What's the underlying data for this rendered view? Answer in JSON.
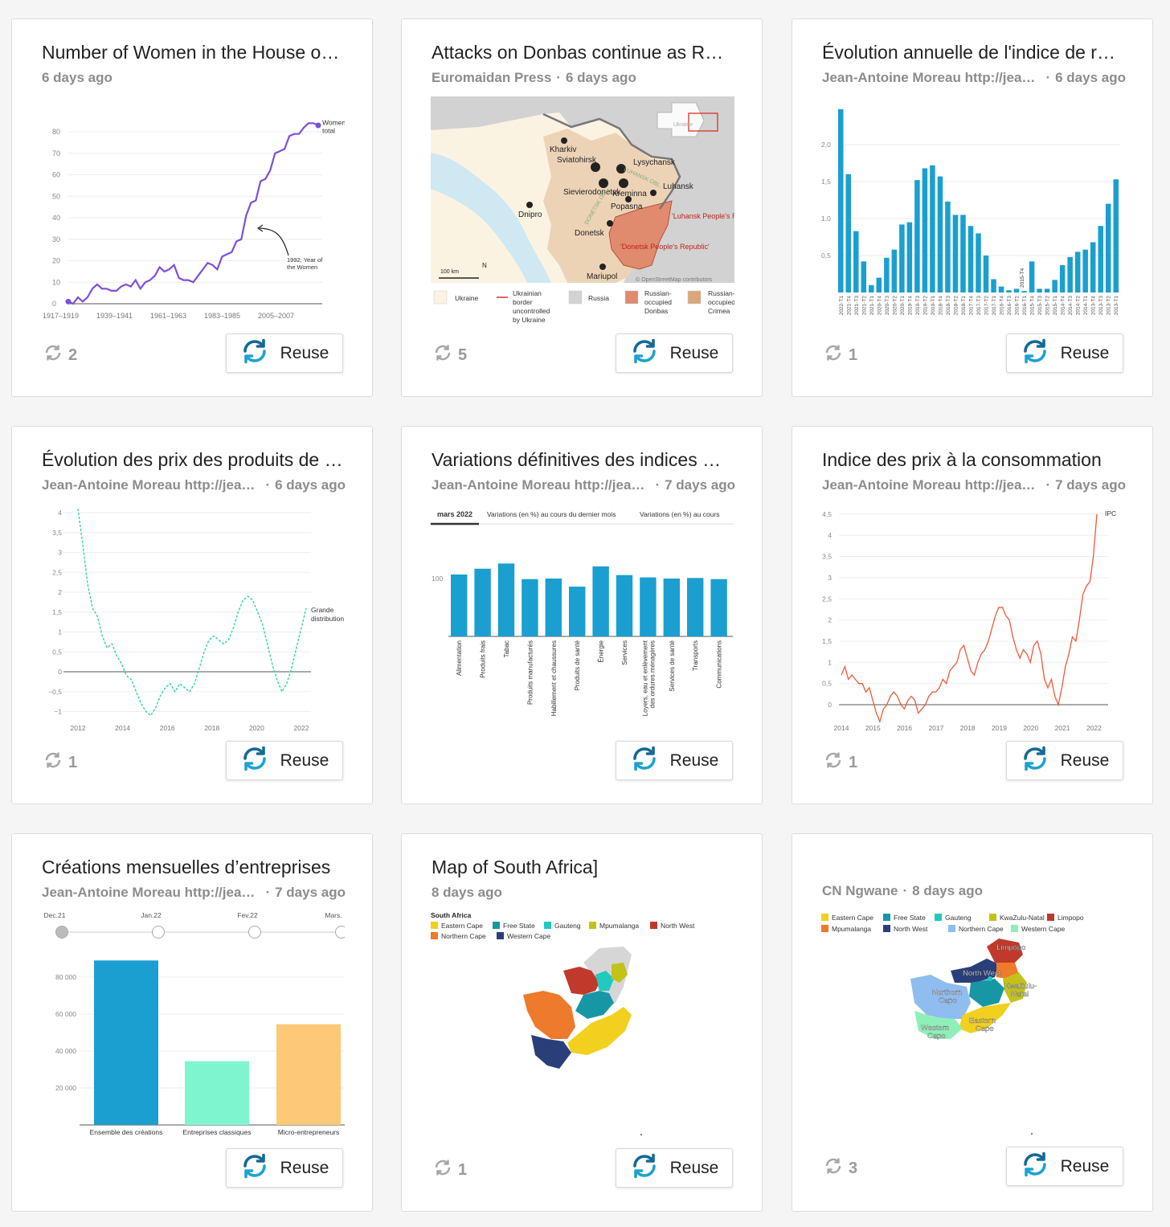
{
  "reuse_label": "Reuse",
  "cards": [
    {
      "title": "Number of Women in the House of…",
      "author": "",
      "time": "6 days ago",
      "reuses": "2",
      "chart": {
        "type": "line",
        "color": "#7b4fe0",
        "x_ticks": [
          "1917–1919",
          "1939–1941",
          "1961–1963",
          "1983–1985",
          "2005–2007"
        ],
        "y_ticks": [
          "0",
          "10",
          "20",
          "30",
          "40",
          "50",
          "60",
          "70",
          "80"
        ],
        "series_label": [
          "Women",
          "total"
        ],
        "annotation": [
          "1992: Year of",
          "the Women"
        ]
      }
    },
    {
      "title": "Attacks on Donbas continue as Ru…",
      "author": "Euromaidan Press",
      "time": "6 days ago",
      "reuses": "5",
      "map": {
        "cities": [
          "Kharkiv",
          "Sviatohirsk",
          "Lysychansk",
          "Sievierodonetsk",
          "Kreminna",
          "Luhansk",
          "Popasna",
          "Dnipro",
          "Donetsk",
          "Mariupol"
        ],
        "region_labels": [
          "LUHANSK OBL.",
          "DONETSK OBL."
        ],
        "red_labels": [
          "'Luhansk People's Republic'",
          "'Donetsk People's Republic'"
        ],
        "inset_label": "Ukraine",
        "scale": "100 km",
        "north": "N",
        "credit": "© OpenStreetMap contributors",
        "legend": [
          "Ukraine",
          "Ukrainian border uncontrolled by Ukraine",
          "Russia",
          "Russian-occupied Donbas",
          "Russian-occupied Crimea"
        ]
      }
    },
    {
      "title": "Évolution annuelle de l'indice de ré…",
      "author": "Jean-Antoine Moreau http://jeanantoinemoreau",
      "time": "6 days ago",
      "reuses": "1",
      "chart": {
        "type": "bar",
        "color": "#1a9fd0",
        "y_ticks": [
          "0,5",
          "1,0",
          "1,5",
          "2,0"
        ],
        "categories": [
          "2022-T1",
          "2021-T4",
          "2021-T3",
          "2021-T2",
          "2021-T1",
          "2020-T4",
          "2020-T3",
          "2020-T2",
          "2020-T1",
          "2019-T4",
          "2019-T3",
          "2019-T2",
          "2019-T1",
          "2018-T4",
          "2018-T3",
          "2018-T2",
          "2018-T1",
          "2017-T4",
          "2017-T3",
          "2017-T2",
          "2017-T1",
          "2016-T4",
          "2016-T3",
          "2016-T2",
          "2016-T1",
          "2015-T4",
          "2015-T3",
          "2015-T2",
          "2015-T1",
          "2014-T4",
          "2014-T3",
          "2014-T2",
          "2014-T1",
          "2013-T4",
          "2013-T3",
          "2013-T2",
          "2013-T1"
        ],
        "values": [
          2.48,
          1.6,
          0.83,
          0.42,
          0.1,
          0.2,
          0.47,
          0.58,
          0.92,
          0.95,
          1.52,
          1.68,
          1.72,
          1.57,
          1.23,
          1.05,
          1.05,
          0.9,
          0.8,
          0.5,
          0.18,
          0.08,
          0.03,
          0.05,
          0.02,
          0.42,
          0.05,
          0.05,
          0.17,
          0.37,
          0.48,
          0.55,
          0.58,
          0.68,
          0.9,
          1.2,
          1.53
        ],
        "annotation": "2015-T4"
      }
    },
    {
      "title": "Évolution des prix des produits de …",
      "author": "Jean-Antoine Moreau http://jeanantoinemoreau",
      "time": "6 days ago",
      "reuses": "1",
      "chart": {
        "type": "line",
        "color": "#2bd4a0",
        "x_ticks": [
          "2012",
          "2014",
          "2016",
          "2018",
          "2020",
          "2022"
        ],
        "y_ticks": [
          "4",
          "3,5",
          "3",
          "2,5",
          "2",
          "1,5",
          "1",
          "0,5",
          "0",
          "−0,5",
          "−1"
        ],
        "series_label": [
          "Grande",
          "distribution"
        ]
      }
    },
    {
      "title": "Variations définitives des indices …",
      "author": "Jean-Antoine Moreau http://jeanantoinemoreau",
      "time": "7 days ago",
      "reuses": "",
      "chart": {
        "type": "bar",
        "color": "#1a9fd0",
        "tabs": [
          "mars 2022",
          "Variations (en %) au cours du dernier mois",
          "Variations (en %) au cours"
        ],
        "y_tick": "100",
        "categories": [
          "Alimentation",
          "Produits frais",
          "Tabac",
          "Produits manufacturés",
          "Habillement et chaussures",
          "Produits de santé",
          "Énergie",
          "Services",
          "Loyers, eau et enlèvement des ordures ménagères",
          "Services de santé",
          "Transports",
          "Communications"
        ],
        "values": [
          107,
          117,
          126,
          99,
          100,
          86,
          121,
          106,
          102,
          100,
          101,
          99
        ]
      }
    },
    {
      "title": "Indice des prix à la consommation",
      "author": "Jean-Antoine Moreau http://jeanantoinemoreau",
      "time": "7 days ago",
      "reuses": "1",
      "chart": {
        "type": "line",
        "color": "#ef5a3c",
        "x_ticks": [
          "2014",
          "2015",
          "2016",
          "2017",
          "2018",
          "2019",
          "2020",
          "2021",
          "2022"
        ],
        "y_ticks": [
          "4,5",
          "4",
          "3,5",
          "3",
          "2,5",
          "2",
          "1,5",
          "1",
          "0,5",
          "0"
        ],
        "series_label": "IPC"
      }
    },
    {
      "title": "Créations mensuelles d’entreprises",
      "author": "Jean-Antoine Moreau http://jeanantoinemoreau",
      "time": "7 days ago",
      "reuses": "",
      "chart": {
        "type": "bar",
        "slider": [
          "Dec.21",
          "Jan.22",
          "Fev.22",
          "Mars."
        ],
        "y_ticks": [
          "20 000",
          "40 000",
          "60 000",
          "80 000"
        ],
        "categories": [
          "Ensemble des créations",
          "Entreprises classiques",
          "Micro-entrepreneurs"
        ],
        "values": [
          89000,
          34500,
          54500
        ],
        "colors": [
          "#1a9fd0",
          "#7ff5cf",
          "#fdc977"
        ]
      }
    },
    {
      "title": "Map of South Africa]",
      "author": "",
      "time": "8 days ago",
      "reuses": "1",
      "map": {
        "legend_title": "South Africa",
        "legend": [
          {
            "name": "Eastern Cape",
            "color": "#f2d01e"
          },
          {
            "name": "Free State",
            "color": "#1797a6"
          },
          {
            "name": "Gauteng",
            "color": "#21c9c0"
          },
          {
            "name": "Mpumalanga",
            "color": "#c3c21a"
          },
          {
            "name": "North West",
            "color": "#c0392b"
          },
          {
            "name": "Northern Cape",
            "color": "#ee7a2c"
          },
          {
            "name": "Western Cape",
            "color": "#2a3f7a"
          }
        ]
      }
    },
    {
      "title": "",
      "author": "CN Ngwane",
      "time": "8 days ago",
      "reuses": "3",
      "map": {
        "legend": [
          {
            "name": "Eastern Cape",
            "color": "#f2d01e"
          },
          {
            "name": "Free State",
            "color": "#1797a6"
          },
          {
            "name": "Gauteng",
            "color": "#21c9c0"
          },
          {
            "name": "KwaZulu-Natal",
            "color": "#c3c21a"
          },
          {
            "name": "Limpopo",
            "color": "#c0392b"
          },
          {
            "name": "Mpumalanga",
            "color": "#ee7a2c"
          },
          {
            "name": "North West",
            "color": "#2a3f7a"
          },
          {
            "name": "Northern Cape",
            "color": "#8fbdf0"
          },
          {
            "name": "Western Cape",
            "color": "#8ef0b8"
          }
        ],
        "region_labels": [
          "Limpopo",
          "North West",
          "KwaZulu-Natal",
          "Northern Cape",
          "Eastern Cape",
          "Western Cape"
        ]
      }
    }
  ]
}
